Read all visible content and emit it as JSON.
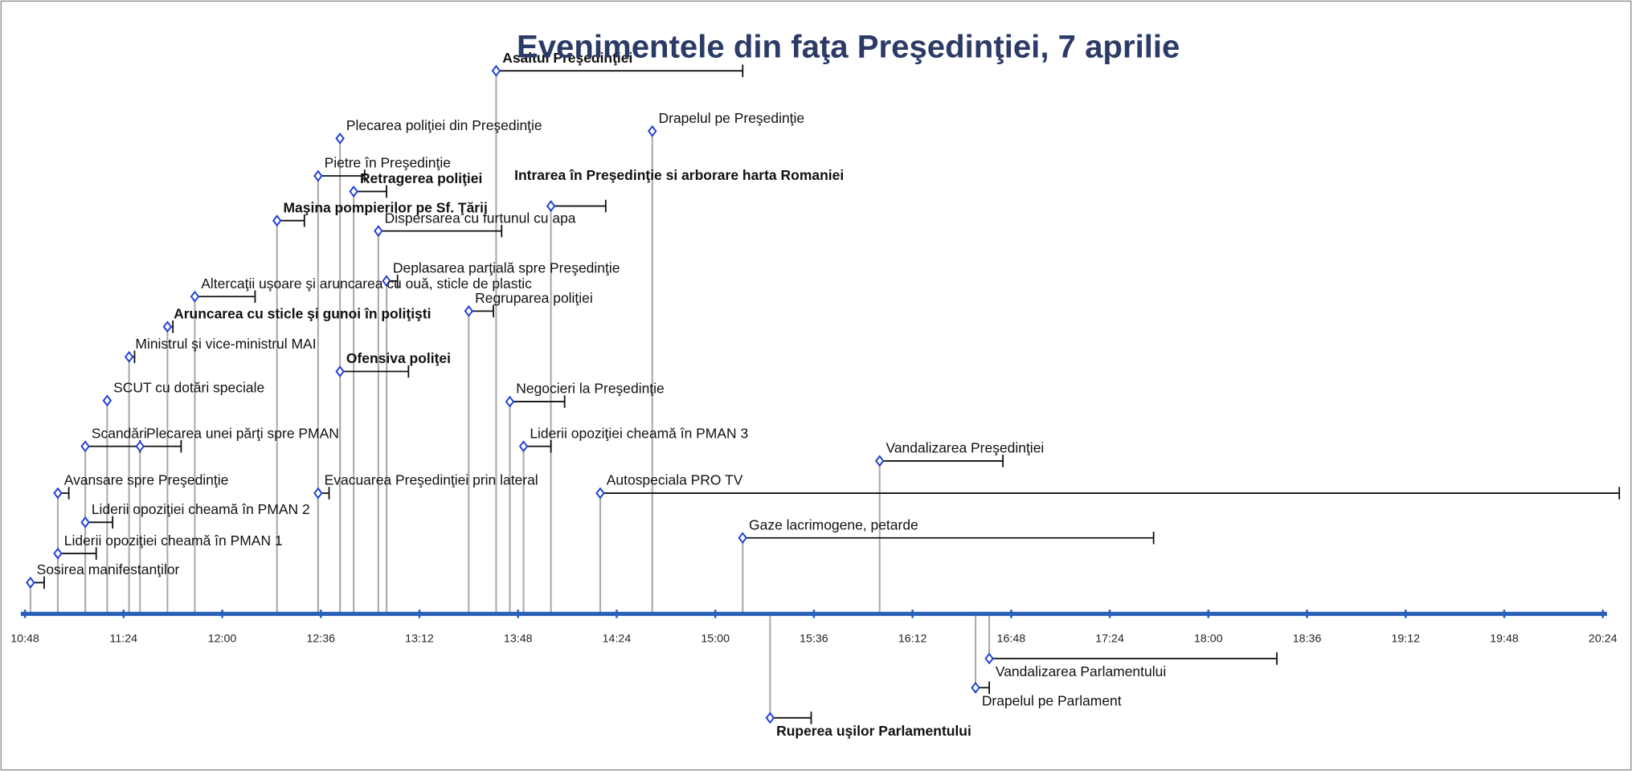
{
  "chart_data": {
    "type": "timeline",
    "title": "Evenimentele din faţa Preşedinţiei, 7 aprilie",
    "xlim": [
      "10:48",
      "20:24"
    ],
    "xticks": [
      "10:48",
      "11:24",
      "12:00",
      "12:36",
      "13:12",
      "13:48",
      "14:24",
      "15:00",
      "15:36",
      "16:12",
      "16:48",
      "17:24",
      "18:00",
      "18:36",
      "19:12",
      "19:48",
      "20:24"
    ],
    "marker_color": "#1f3fd6",
    "axis_color": "#2a5fb8",
    "events": [
      {
        "label": "Sosirea manifestanţilor",
        "start": "10:50",
        "end": "10:55",
        "bold": false
      },
      {
        "label": "Liderii opoziţiei cheamă în PMAN 1",
        "start": "11:00",
        "end": "11:14",
        "bold": false
      },
      {
        "label": "Liderii opoziţiei cheamă în PMAN 2",
        "start": "11:10",
        "end": "11:20",
        "bold": false
      },
      {
        "label": "Avansare spre Preşedinţie",
        "start": "11:00",
        "end": "11:04",
        "bold": false
      },
      {
        "label": "Scandări",
        "start": "11:10",
        "end": "11:30",
        "bold": false
      },
      {
        "label": "Plecarea unei părţi spre PMAN",
        "start": "11:30",
        "end": "11:45",
        "bold": false
      },
      {
        "label": "SCUT cu dotări speciale",
        "start": "11:18",
        "end": null,
        "bold": false
      },
      {
        "label": "Ministrul şi vice-ministrul MAI",
        "start": "11:26",
        "end": "11:28",
        "bold": false
      },
      {
        "label": "Aruncarea cu sticle şi gunoi în poliţişti",
        "start": "11:40",
        "end": "11:42",
        "bold": true
      },
      {
        "label": "Altercaţii uşoare şi aruncarea cu ouă, sticle de plastic",
        "start": "11:50",
        "end": "12:12",
        "bold": false
      },
      {
        "label": "Maşina pompierilor pe Sf. Ţării",
        "start": "12:20",
        "end": "12:30",
        "bold": true
      },
      {
        "label": "Pietre în Preşedinţie",
        "start": "12:35",
        "end": "12:52",
        "bold": false
      },
      {
        "label": "Evacuarea Preşedinţiei prin lateral",
        "start": "12:35",
        "end": "12:39",
        "bold": false
      },
      {
        "label": "Plecarea poliţiei din Preşedinţie",
        "start": "12:43",
        "end": null,
        "bold": false
      },
      {
        "label": "Ofensiva poliţei",
        "start": "12:43",
        "end": "13:08",
        "bold": true
      },
      {
        "label": "Retragerea poliţiei",
        "start": "12:48",
        "end": "13:00",
        "bold": true
      },
      {
        "label": "Dispersarea cu furtunul cu apa",
        "start": "12:57",
        "end": "13:42",
        "bold": false
      },
      {
        "label": "Deplasarea parţială spre Preşedinţie",
        "start": "13:00",
        "end": "13:04",
        "bold": false
      },
      {
        "label": "Regruparea poliţiei",
        "start": "13:30",
        "end": "13:39",
        "bold": false
      },
      {
        "label": "Asaltul Preşedinţiei",
        "start": "13:40",
        "end": "15:10",
        "bold": true
      },
      {
        "label": "Negocieri la Preşedinţie",
        "start": "13:45",
        "end": "14:05",
        "bold": false
      },
      {
        "label": "Liderii opoziţiei cheamă în PMAN 3",
        "start": "13:50",
        "end": "14:00",
        "bold": false
      },
      {
        "label": "Intrarea în Preşedinţie si arborare harta Romaniei",
        "start": "14:00",
        "end": "14:20",
        "bold": true
      },
      {
        "label": "Autospeciala PRO TV",
        "start": "14:18",
        "end": "20:30",
        "bold": false
      },
      {
        "label": "Drapelul pe Preşedinţie",
        "start": "14:37",
        "end": null,
        "bold": false
      },
      {
        "label": "Gaze lacrimogene, petarde",
        "start": "15:10",
        "end": "17:40",
        "bold": false
      },
      {
        "label": "Vandalizarea Preşedinţiei",
        "start": "16:00",
        "end": "16:45",
        "bold": false
      },
      {
        "label": "Ruperea uşilor Parlamentului",
        "start": "15:20",
        "end": "15:35",
        "bold": true
      },
      {
        "label": "Drapelul pe Parlament",
        "start": "16:35",
        "end": "16:40",
        "bold": false
      },
      {
        "label": "Vandalizarea Parlamentului",
        "start": "16:40",
        "end": "18:25",
        "bold": false
      }
    ]
  }
}
